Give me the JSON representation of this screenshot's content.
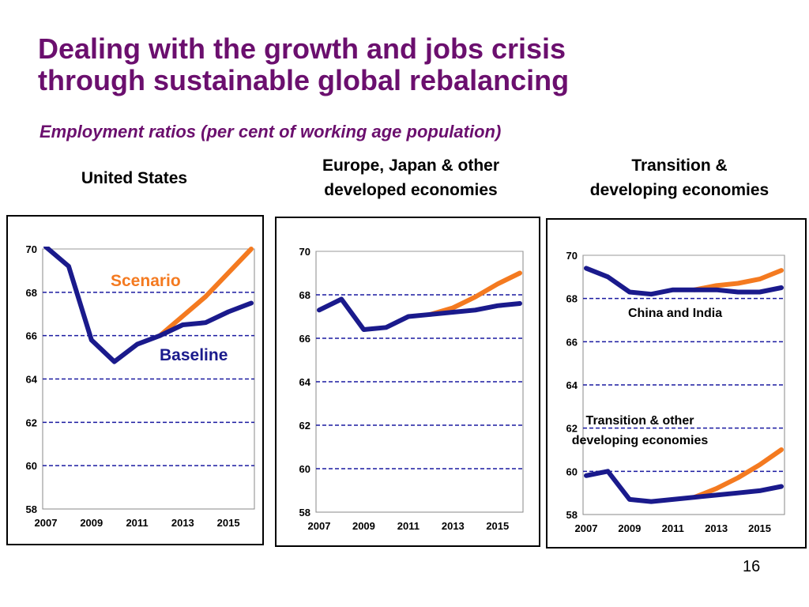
{
  "slide": {
    "title_line1": "Dealing with the growth and jobs crisis",
    "title_line2": "through sustainable global rebalancing",
    "subtitle": "Employment ratios (per cent of working age population)",
    "page_number": "16"
  },
  "colors": {
    "baseline": "#1a1a8c",
    "scenario": "#f47a20",
    "title": "#6b0f6e",
    "grid": "#1a1aa0"
  },
  "panels": [
    {
      "title_line1": "United States",
      "title_line2": ""
    },
    {
      "title_line1": "Europe, Japan & other",
      "title_line2": "developed economies"
    },
    {
      "title_line1": "Transition &",
      "title_line2": "developing economies"
    }
  ],
  "chart_data": [
    {
      "type": "line",
      "title": "United States",
      "xlabel": "",
      "ylabel": "",
      "xlim": [
        2007,
        2016
      ],
      "ylim": [
        58,
        70
      ],
      "yticks": [
        58,
        60,
        62,
        64,
        66,
        68,
        70
      ],
      "xticks": [
        2007,
        2009,
        2011,
        2013,
        2015
      ],
      "grid": "dashed horizontal at 60, 62, 64, 66, 68",
      "annotations": [
        "Scenario",
        "Baseline"
      ],
      "series": [
        {
          "name": "Baseline",
          "color": "baseline",
          "x": [
            2007,
            2008,
            2009,
            2010,
            2011,
            2012,
            2013,
            2014,
            2015,
            2016
          ],
          "y": [
            70.1,
            69.2,
            65.8,
            64.8,
            65.6,
            66.0,
            66.5,
            66.6,
            67.1,
            67.5
          ]
        },
        {
          "name": "Scenario",
          "color": "scenario",
          "x": [
            2012,
            2013,
            2014,
            2015,
            2016
          ],
          "y": [
            66.0,
            66.9,
            67.8,
            68.9,
            70.0
          ]
        }
      ]
    },
    {
      "type": "line",
      "title": "Europe, Japan & other developed economies",
      "xlabel": "",
      "ylabel": "",
      "xlim": [
        2007,
        2016
      ],
      "ylim": [
        58,
        70
      ],
      "yticks": [
        58,
        60,
        62,
        64,
        66,
        68,
        70
      ],
      "xticks": [
        2007,
        2009,
        2011,
        2013,
        2015
      ],
      "grid": "dashed horizontal at 60, 62, 64, 66, 68",
      "annotations": [],
      "series": [
        {
          "name": "Baseline",
          "color": "baseline",
          "x": [
            2007,
            2008,
            2009,
            2010,
            2011,
            2012,
            2013,
            2014,
            2015,
            2016
          ],
          "y": [
            67.3,
            67.8,
            66.4,
            66.5,
            67.0,
            67.1,
            67.2,
            67.3,
            67.5,
            67.6
          ]
        },
        {
          "name": "Scenario",
          "color": "scenario",
          "x": [
            2012,
            2013,
            2014,
            2015,
            2016
          ],
          "y": [
            67.1,
            67.4,
            67.9,
            68.5,
            69.0
          ]
        }
      ]
    },
    {
      "type": "line",
      "title": "Transition & developing economies",
      "xlabel": "",
      "ylabel": "",
      "xlim": [
        2007,
        2016
      ],
      "ylim": [
        58,
        70
      ],
      "yticks": [
        58,
        60,
        62,
        64,
        66,
        68,
        70
      ],
      "xticks": [
        2007,
        2009,
        2011,
        2013,
        2015
      ],
      "grid": "dashed horizontal at 60, 62, 64, 66, 68",
      "annotations": [
        "China and India",
        "Transition & other developing economies"
      ],
      "series": [
        {
          "name": "China and India - Baseline",
          "color": "baseline",
          "x": [
            2007,
            2008,
            2009,
            2010,
            2011,
            2012,
            2013,
            2014,
            2015,
            2016
          ],
          "y": [
            69.4,
            69.0,
            68.3,
            68.2,
            68.4,
            68.4,
            68.4,
            68.3,
            68.3,
            68.5
          ]
        },
        {
          "name": "China and India - Scenario",
          "color": "scenario",
          "x": [
            2012,
            2013,
            2014,
            2015,
            2016
          ],
          "y": [
            68.4,
            68.6,
            68.7,
            68.9,
            69.3
          ]
        },
        {
          "name": "Transition & other developing economies - Baseline",
          "color": "baseline",
          "x": [
            2007,
            2008,
            2009,
            2010,
            2011,
            2012,
            2013,
            2014,
            2015,
            2016
          ],
          "y": [
            59.8,
            60.0,
            58.7,
            58.6,
            58.7,
            58.8,
            58.9,
            59.0,
            59.1,
            59.3
          ]
        },
        {
          "name": "Transition & other developing economies - Scenario",
          "color": "scenario",
          "x": [
            2012,
            2013,
            2014,
            2015,
            2016
          ],
          "y": [
            58.8,
            59.2,
            59.7,
            60.3,
            61.0
          ]
        }
      ]
    }
  ]
}
